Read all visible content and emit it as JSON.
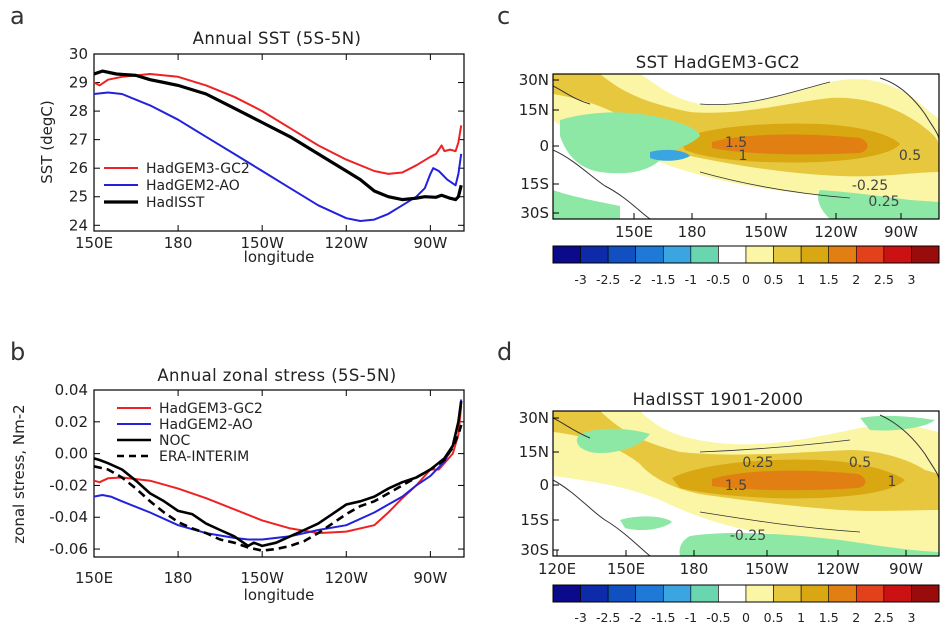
{
  "panels": {
    "a": {
      "letter": "a"
    },
    "b": {
      "letter": "b"
    },
    "c": {
      "letter": "c"
    },
    "d": {
      "letter": "d"
    }
  },
  "colors": {
    "hadgem3": "#ee2222",
    "hadgem2": "#2222dd",
    "obs": "#000000",
    "map_bg": "#1f8f8f"
  },
  "chart_data": [
    {
      "id": "a",
      "type": "line",
      "title": "Annual SST (5S-5N)",
      "xlabel": "longitude",
      "ylabel": "SST (degC)",
      "xlim": [
        150,
        282
      ],
      "ylim": [
        23.8,
        30.0
      ],
      "xticks": [
        150,
        180,
        210,
        240,
        270
      ],
      "xticklabels": [
        "150E",
        "180",
        "150W",
        "120W",
        "90W"
      ],
      "yticks": [
        24,
        25,
        26,
        27,
        28,
        29,
        30
      ],
      "yticklabels": [
        "24",
        "25",
        "26",
        "27",
        "28",
        "29",
        "30"
      ],
      "legend_position": "bottom-left",
      "series": [
        {
          "name": "HadGEM3-GC2",
          "color_key": "hadgem3",
          "width": 2,
          "dash": "",
          "points": [
            [
              150,
              29.0
            ],
            [
              152,
              28.9
            ],
            [
              155,
              29.1
            ],
            [
              160,
              29.2
            ],
            [
              170,
              29.3
            ],
            [
              180,
              29.2
            ],
            [
              190,
              28.9
            ],
            [
              200,
              28.5
            ],
            [
              210,
              28.0
            ],
            [
              220,
              27.4
            ],
            [
              230,
              26.8
            ],
            [
              240,
              26.3
            ],
            [
              250,
              25.9
            ],
            [
              255,
              25.8
            ],
            [
              260,
              25.85
            ],
            [
              265,
              26.1
            ],
            [
              270,
              26.4
            ],
            [
              272,
              26.5
            ],
            [
              274,
              26.8
            ],
            [
              275,
              26.6
            ],
            [
              277,
              26.65
            ],
            [
              279,
              26.6
            ],
            [
              280,
              26.9
            ],
            [
              281,
              27.5
            ]
          ]
        },
        {
          "name": "HadGEM2-AO",
          "color_key": "hadgem2",
          "width": 2,
          "dash": "",
          "points": [
            [
              150,
              28.6
            ],
            [
              155,
              28.65
            ],
            [
              160,
              28.6
            ],
            [
              170,
              28.2
            ],
            [
              180,
              27.7
            ],
            [
              190,
              27.1
            ],
            [
              200,
              26.5
            ],
            [
              210,
              25.9
            ],
            [
              220,
              25.3
            ],
            [
              230,
              24.7
            ],
            [
              240,
              24.25
            ],
            [
              245,
              24.15
            ],
            [
              250,
              24.2
            ],
            [
              255,
              24.4
            ],
            [
              260,
              24.7
            ],
            [
              265,
              25.0
            ],
            [
              268,
              25.3
            ],
            [
              270,
              25.8
            ],
            [
              271,
              26.0
            ],
            [
              273,
              25.9
            ],
            [
              276,
              25.6
            ],
            [
              279,
              25.4
            ],
            [
              280,
              25.8
            ],
            [
              281,
              26.5
            ]
          ]
        },
        {
          "name": "HadISST",
          "color_key": "obs",
          "width": 3.2,
          "dash": "",
          "points": [
            [
              150,
              29.3
            ],
            [
              153,
              29.4
            ],
            [
              158,
              29.3
            ],
            [
              165,
              29.25
            ],
            [
              170,
              29.1
            ],
            [
              175,
              29.0
            ],
            [
              180,
              28.9
            ],
            [
              190,
              28.6
            ],
            [
              200,
              28.1
            ],
            [
              210,
              27.6
            ],
            [
              220,
              27.1
            ],
            [
              230,
              26.5
            ],
            [
              235,
              26.2
            ],
            [
              240,
              25.9
            ],
            [
              245,
              25.6
            ],
            [
              250,
              25.2
            ],
            [
              255,
              25.0
            ],
            [
              260,
              24.9
            ],
            [
              265,
              24.95
            ],
            [
              268,
              25.0
            ],
            [
              272,
              24.98
            ],
            [
              274,
              25.05
            ],
            [
              277,
              24.95
            ],
            [
              279,
              24.9
            ],
            [
              280,
              25.0
            ],
            [
              281,
              25.4
            ]
          ]
        }
      ]
    },
    {
      "id": "b",
      "type": "line",
      "title": "Annual zonal stress (5S-5N)",
      "xlabel": "longitude",
      "ylabel": "zonal stress, Nm-2",
      "xlim": [
        150,
        282
      ],
      "ylim": [
        -0.065,
        0.04
      ],
      "xticks": [
        150,
        180,
        210,
        240,
        270
      ],
      "xticklabels": [
        "150E",
        "180",
        "150W",
        "120W",
        "90W"
      ],
      "yticks": [
        -0.06,
        -0.04,
        -0.02,
        0.0,
        0.02,
        0.04
      ],
      "yticklabels": [
        "-0.06",
        "-0.04",
        "-0.02",
        "0.00",
        "0.02",
        "0.04"
      ],
      "legend_position": "top-left",
      "series": [
        {
          "name": "HadGEM3-GC2",
          "color_key": "hadgem3",
          "width": 2,
          "dash": "",
          "points": [
            [
              150,
              -0.017
            ],
            [
              152,
              -0.018
            ],
            [
              155,
              -0.0155
            ],
            [
              160,
              -0.015
            ],
            [
              165,
              -0.016
            ],
            [
              170,
              -0.017
            ],
            [
              180,
              -0.022
            ],
            [
              190,
              -0.028
            ],
            [
              200,
              -0.035
            ],
            [
              210,
              -0.042
            ],
            [
              220,
              -0.047
            ],
            [
              230,
              -0.05
            ],
            [
              240,
              -0.049
            ],
            [
              250,
              -0.045
            ],
            [
              255,
              -0.037
            ],
            [
              260,
              -0.028
            ],
            [
              265,
              -0.02
            ],
            [
              270,
              -0.01
            ],
            [
              273,
              -0.01
            ],
            [
              275,
              -0.006
            ],
            [
              278,
              0.0
            ],
            [
              280,
              0.012
            ],
            [
              281,
              0.03
            ]
          ]
        },
        {
          "name": "HadGEM2-AO",
          "color_key": "hadgem2",
          "width": 2,
          "dash": "",
          "points": [
            [
              150,
              -0.027
            ],
            [
              153,
              -0.026
            ],
            [
              156,
              -0.027
            ],
            [
              160,
              -0.03
            ],
            [
              170,
              -0.037
            ],
            [
              180,
              -0.045
            ],
            [
              190,
              -0.05
            ],
            [
              200,
              -0.053
            ],
            [
              205,
              -0.054
            ],
            [
              210,
              -0.054
            ],
            [
              215,
              -0.053
            ],
            [
              220,
              -0.052
            ],
            [
              230,
              -0.048
            ],
            [
              240,
              -0.045
            ],
            [
              250,
              -0.037
            ],
            [
              255,
              -0.032
            ],
            [
              260,
              -0.027
            ],
            [
              265,
              -0.02
            ],
            [
              270,
              -0.014
            ],
            [
              275,
              -0.005
            ],
            [
              278,
              0.005
            ],
            [
              280,
              0.02
            ],
            [
              281,
              0.034
            ]
          ]
        },
        {
          "name": "NOC",
          "color_key": "obs",
          "width": 2.6,
          "dash": "",
          "points": [
            [
              150,
              -0.003
            ],
            [
              152,
              -0.004
            ],
            [
              155,
              -0.006
            ],
            [
              160,
              -0.01
            ],
            [
              165,
              -0.017
            ],
            [
              170,
              -0.025
            ],
            [
              175,
              -0.03
            ],
            [
              180,
              -0.036
            ],
            [
              185,
              -0.038
            ],
            [
              190,
              -0.044
            ],
            [
              195,
              -0.048
            ],
            [
              200,
              -0.052
            ],
            [
              205,
              -0.058
            ],
            [
              207,
              -0.056
            ],
            [
              210,
              -0.058
            ],
            [
              215,
              -0.056
            ],
            [
              220,
              -0.052
            ],
            [
              225,
              -0.048
            ],
            [
              230,
              -0.044
            ],
            [
              235,
              -0.038
            ],
            [
              240,
              -0.032
            ],
            [
              245,
              -0.03
            ],
            [
              250,
              -0.027
            ],
            [
              255,
              -0.022
            ],
            [
              260,
              -0.018
            ],
            [
              265,
              -0.015
            ],
            [
              270,
              -0.01
            ],
            [
              275,
              -0.003
            ],
            [
              278,
              0.005
            ],
            [
              280,
              0.02
            ],
            [
              281,
              0.033
            ]
          ]
        },
        {
          "name": "ERA-INTERIM",
          "color_key": "obs",
          "width": 2.6,
          "dash": "8,5",
          "points": [
            [
              150,
              -0.008
            ],
            [
              155,
              -0.01
            ],
            [
              160,
              -0.015
            ],
            [
              165,
              -0.022
            ],
            [
              170,
              -0.03
            ],
            [
              175,
              -0.037
            ],
            [
              180,
              -0.043
            ],
            [
              185,
              -0.047
            ],
            [
              190,
              -0.05
            ],
            [
              195,
              -0.054
            ],
            [
              200,
              -0.056
            ],
            [
              205,
              -0.059
            ],
            [
              210,
              -0.061
            ],
            [
              215,
              -0.06
            ],
            [
              220,
              -0.058
            ],
            [
              225,
              -0.055
            ],
            [
              230,
              -0.05
            ],
            [
              235,
              -0.044
            ],
            [
              240,
              -0.038
            ],
            [
              245,
              -0.033
            ],
            [
              250,
              -0.03
            ],
            [
              255,
              -0.025
            ],
            [
              260,
              -0.02
            ],
            [
              265,
              -0.015
            ],
            [
              270,
              -0.01
            ],
            [
              275,
              -0.004
            ],
            [
              278,
              0.004
            ],
            [
              280,
              0.012
            ],
            [
              281,
              0.018
            ]
          ]
        }
      ]
    },
    {
      "id": "c",
      "type": "heatmap",
      "title": "SST  HadGEM3-GC2",
      "xticklabels": [
        "150E",
        "180",
        "150W",
        "120W",
        "90W"
      ],
      "yticklabels": [
        "30N",
        "15N",
        "0",
        "15S",
        "30S"
      ],
      "contour_labels": [
        "1.5",
        "1",
        "0.5",
        "-0.25",
        "0.25"
      ],
      "colorbar": {
        "labels": [
          "-3",
          "-2.5",
          "-2",
          "-1.5",
          "-1",
          "-0.5",
          "0",
          "0.5",
          "1",
          "1.5",
          "2",
          "2.5",
          "3"
        ],
        "colors": [
          "#0a0a8a",
          "#0d2aa8",
          "#1050c0",
          "#1e7ad6",
          "#3aa5e0",
          "#6ad6b0",
          "#ffffff",
          "#fbf6a6",
          "#e7c73d",
          "#d8a712",
          "#e27f13",
          "#e3411c",
          "#cb1111",
          "#9a0b0b"
        ]
      }
    },
    {
      "id": "d",
      "type": "heatmap",
      "title": "HadISST 1901-2000",
      "xticklabels": [
        "120E",
        "150E",
        "180",
        "150W",
        "120W",
        "90W"
      ],
      "yticklabels": [
        "30N",
        "15N",
        "0",
        "15S",
        "30S"
      ],
      "contour_labels": [
        "0.25",
        "0.5",
        "1.5",
        "1",
        "-0.25"
      ],
      "colorbar": {
        "labels": [
          "-3",
          "-2.5",
          "-2",
          "-1.5",
          "-1",
          "-0.5",
          "0",
          "0.5",
          "1",
          "1.5",
          "2",
          "2.5",
          "3"
        ],
        "colors": [
          "#0a0a8a",
          "#0d2aa8",
          "#1050c0",
          "#1e7ad6",
          "#3aa5e0",
          "#6ad6b0",
          "#ffffff",
          "#fbf6a6",
          "#e7c73d",
          "#d8a712",
          "#e27f13",
          "#e3411c",
          "#cb1111",
          "#9a0b0b"
        ]
      }
    }
  ]
}
